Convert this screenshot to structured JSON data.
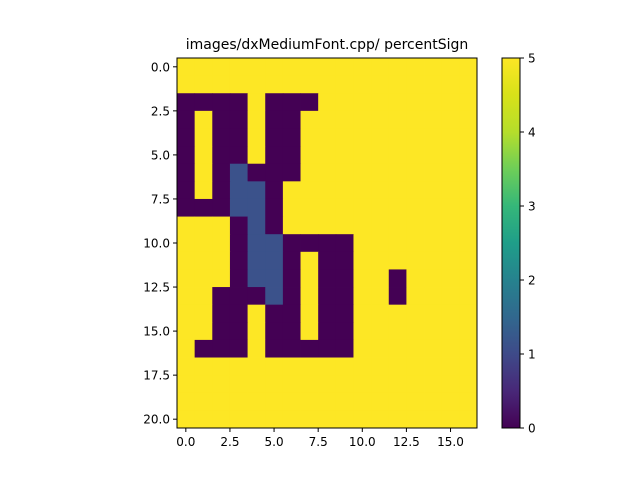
{
  "chart_data": {
    "type": "heatmap",
    "title": "images/dxMediumFont.cpp/ percentSign",
    "xlabel": "",
    "ylabel": "",
    "n_cols": 17,
    "n_rows": 21,
    "x_ticks": [
      "0.0",
      "2.5",
      "5.0",
      "7.5",
      "10.0",
      "12.5",
      "15.0"
    ],
    "y_ticks": [
      "0.0",
      "2.5",
      "5.0",
      "7.5",
      "10.0",
      "12.5",
      "15.0",
      "17.5",
      "20.0"
    ],
    "colorbar": {
      "min": 0,
      "max": 5,
      "ticks": [
        "0",
        "1",
        "2",
        "3",
        "4",
        "5"
      ],
      "colormap": "viridis"
    },
    "values": [
      [
        5,
        5,
        5,
        5,
        5,
        5,
        5,
        5,
        5,
        5,
        5,
        5,
        5,
        5,
        5,
        5,
        5
      ],
      [
        5,
        5,
        5,
        5,
        5,
        5,
        5,
        5,
        5,
        5,
        5,
        5,
        5,
        5,
        5,
        5,
        5
      ],
      [
        0,
        0,
        0,
        0,
        5,
        0,
        0,
        0,
        5,
        5,
        5,
        5,
        5,
        5,
        5,
        5,
        5
      ],
      [
        0,
        5,
        0,
        0,
        5,
        0,
        0,
        5,
        5,
        5,
        5,
        5,
        5,
        5,
        5,
        5,
        5
      ],
      [
        0,
        5,
        0,
        0,
        5,
        0,
        0,
        5,
        5,
        5,
        5,
        5,
        5,
        5,
        5,
        5,
        5
      ],
      [
        0,
        5,
        0,
        0,
        5,
        0,
        0,
        5,
        5,
        5,
        5,
        5,
        5,
        5,
        5,
        5,
        5
      ],
      [
        0,
        5,
        0,
        1,
        0,
        0,
        0,
        5,
        5,
        5,
        5,
        5,
        5,
        5,
        5,
        5,
        5
      ],
      [
        0,
        5,
        0,
        1,
        1,
        0,
        5,
        5,
        5,
        5,
        5,
        5,
        5,
        5,
        5,
        5,
        5
      ],
      [
        0,
        0,
        0,
        1,
        1,
        0,
        5,
        5,
        5,
        5,
        5,
        5,
        5,
        5,
        5,
        5,
        5
      ],
      [
        5,
        5,
        5,
        0,
        1,
        0,
        5,
        5,
        5,
        5,
        5,
        5,
        5,
        5,
        5,
        5,
        5
      ],
      [
        5,
        5,
        5,
        0,
        1,
        1,
        0,
        0,
        0,
        0,
        5,
        5,
        5,
        5,
        5,
        5,
        5
      ],
      [
        5,
        5,
        5,
        0,
        1,
        1,
        0,
        5,
        0,
        0,
        5,
        5,
        5,
        5,
        5,
        5,
        5
      ],
      [
        5,
        5,
        5,
        0,
        1,
        1,
        0,
        5,
        0,
        0,
        5,
        5,
        0,
        5,
        5,
        5,
        5
      ],
      [
        5,
        5,
        0,
        0,
        0,
        1,
        0,
        5,
        0,
        0,
        5,
        5,
        0,
        5,
        5,
        5,
        5
      ],
      [
        5,
        5,
        0,
        0,
        5,
        0,
        0,
        5,
        0,
        0,
        5,
        5,
        5,
        5,
        5,
        5,
        5
      ],
      [
        5,
        5,
        0,
        0,
        5,
        0,
        0,
        5,
        0,
        0,
        5,
        5,
        5,
        5,
        5,
        5,
        5
      ],
      [
        5,
        0,
        0,
        0,
        5,
        0,
        0,
        0,
        0,
        0,
        5,
        5,
        5,
        5,
        5,
        5,
        5
      ],
      [
        5,
        5,
        5,
        5,
        5,
        5,
        5,
        5,
        5,
        5,
        5,
        5,
        5,
        5,
        5,
        5,
        5
      ],
      [
        5,
        5,
        5,
        5,
        5,
        5,
        5,
        5,
        5,
        5,
        5,
        5,
        5,
        5,
        5,
        5,
        5
      ],
      [
        5,
        5,
        5,
        5,
        5,
        5,
        5,
        5,
        5,
        5,
        5,
        5,
        5,
        5,
        5,
        5,
        5
      ],
      [
        5,
        5,
        5,
        5,
        5,
        5,
        5,
        5,
        5,
        5,
        5,
        5,
        5,
        5,
        5,
        5,
        5
      ]
    ],
    "colors": {
      "0": "#440154",
      "1": "#3b528b",
      "5": "#fde725"
    }
  }
}
